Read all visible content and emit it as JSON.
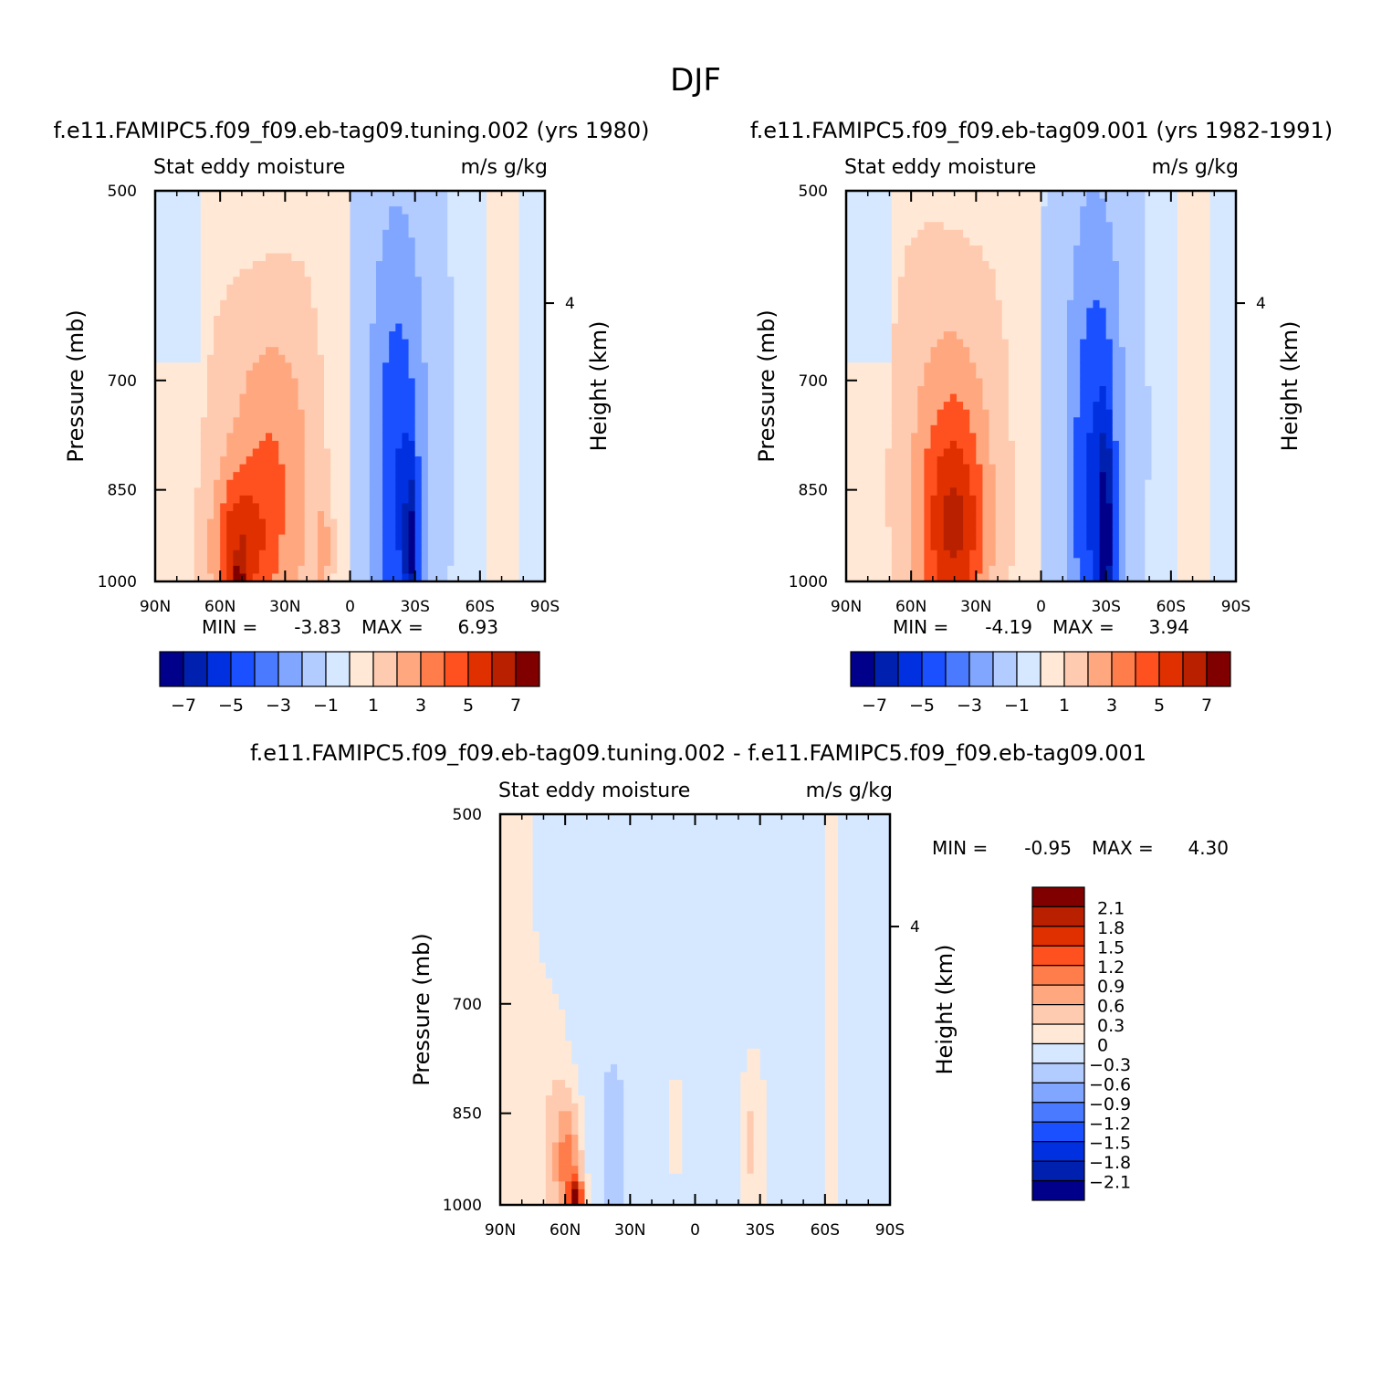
{
  "figure": {
    "title": "DJF"
  },
  "colors": {
    "neg": [
      "#00008b",
      "#0020b0",
      "#0030e0",
      "#1a50ff",
      "#4a7aff",
      "#80a6ff",
      "#b3ccff",
      "#d6e8ff"
    ],
    "pos": [
      "#ffe9d6",
      "#ffcbb0",
      "#ffa880",
      "#ff7d4a",
      "#ff5020",
      "#e03000",
      "#b82000",
      "#800000"
    ],
    "white": "#ffffff"
  },
  "chart_data": [
    {
      "type": "heatmap",
      "panel": "top-left",
      "title": "f.e11.FAMIPC5.f09_f09.eb-tag09.tuning.002 (yrs 1980)",
      "subtitle_left": "Stat eddy moisture",
      "subtitle_right": "m/s g/kg",
      "ylabel": "Pressure (mb)",
      "ylabel_right": "Height (km)",
      "x_ticks": [
        "90N",
        "60N",
        "30N",
        "0",
        "30S",
        "60S",
        "90S"
      ],
      "x_range": [
        90,
        -90
      ],
      "y_ticks": [
        500,
        700,
        850,
        1000
      ],
      "y_range": [
        500,
        1000
      ],
      "y_right_ticks": [
        4
      ],
      "min_label": "MIN =",
      "min": "-3.83",
      "max_label": "MAX =",
      "max": "6.93",
      "colorbar": {
        "orientation": "horizontal",
        "levels": [
          -7,
          -6,
          -5,
          -4,
          -3,
          -2,
          -1,
          0,
          1,
          2,
          3,
          4,
          5,
          6,
          7
        ],
        "tick_labels": [
          "-7",
          "-5",
          "-3",
          "-1",
          "1",
          "3",
          "5",
          "7"
        ]
      },
      "features": [
        {
          "lat": 52,
          "p": 960,
          "value": 3.0,
          "sx": 12,
          "sp": 95
        },
        {
          "lat": 38,
          "p": 880,
          "value": 2.2,
          "sx": 22,
          "sp": 260
        },
        {
          "lat": 12,
          "p": 960,
          "value": 1.4,
          "sx": 4,
          "sp": 70
        },
        {
          "lat": 52,
          "p": 1000,
          "value": 3.6,
          "sx": 3,
          "sp": 22
        },
        {
          "lat": -28,
          "p": 960,
          "value": -3.3,
          "sx": 3,
          "sp": 110
        },
        {
          "lat": -22,
          "p": 900,
          "value": -2.4,
          "sx": 12,
          "sp": 300
        },
        {
          "lat": -20,
          "p": 760,
          "value": -1.3,
          "sx": 22,
          "sp": 600
        },
        {
          "lat": 35,
          "p": 880,
          "value": 0.7,
          "sx": 16,
          "sp": 240
        }
      ],
      "background": "warm-north-cool-south"
    },
    {
      "type": "heatmap",
      "panel": "top-right",
      "title": "f.e11.FAMIPC5.f09_f09.eb-tag09.001 (yrs 1982-1991)",
      "subtitle_left": "Stat eddy moisture",
      "subtitle_right": "m/s g/kg",
      "ylabel": "Pressure (mb)",
      "ylabel_right": "Height (km)",
      "x_ticks": [
        "90N",
        "60N",
        "30N",
        "0",
        "30S",
        "60S",
        "90S"
      ],
      "x_range": [
        90,
        -90
      ],
      "y_ticks": [
        500,
        700,
        850,
        1000
      ],
      "y_range": [
        500,
        1000
      ],
      "y_right_ticks": [
        4
      ],
      "min_label": "MIN =",
      "min": "-4.19",
      "max_label": "MAX =",
      "max": "3.94",
      "colorbar": {
        "orientation": "horizontal",
        "levels": [
          -7,
          -6,
          -5,
          -4,
          -3,
          -2,
          -1,
          0,
          1,
          2,
          3,
          4,
          5,
          6,
          7
        ],
        "tick_labels": [
          "-7",
          "-5",
          "-3",
          "-1",
          "1",
          "3",
          "5",
          "7"
        ]
      },
      "features": [
        {
          "lat": 40,
          "p": 940,
          "value": 2.6,
          "sx": 14,
          "sp": 140
        },
        {
          "lat": 42,
          "p": 860,
          "value": 1.8,
          "sx": 22,
          "sp": 300
        },
        {
          "lat": -30,
          "p": 950,
          "value": -3.6,
          "sx": 3,
          "sp": 150
        },
        {
          "lat": -25,
          "p": 900,
          "value": -2.6,
          "sx": 12,
          "sp": 310
        },
        {
          "lat": -22,
          "p": 760,
          "value": -1.3,
          "sx": 22,
          "sp": 620
        },
        {
          "lat": 40,
          "p": 900,
          "value": 0.8,
          "sx": 18,
          "sp": 260
        }
      ],
      "background": "warm-north-cool-south"
    },
    {
      "type": "heatmap",
      "panel": "bottom",
      "title": "f.e11.FAMIPC5.f09_f09.eb-tag09.tuning.002 - f.e11.FAMIPC5.f09_f09.eb-tag09.001",
      "subtitle_left": "Stat eddy moisture",
      "subtitle_right": "m/s g/kg",
      "ylabel": "Pressure (mb)",
      "ylabel_right": "Height (km)",
      "x_ticks": [
        "90N",
        "60N",
        "30N",
        "0",
        "30S",
        "60S",
        "90S"
      ],
      "x_range": [
        90,
        -90
      ],
      "y_ticks": [
        500,
        700,
        850,
        1000
      ],
      "y_range": [
        500,
        1000
      ],
      "y_right_ticks": [
        4
      ],
      "min_label": "MIN =",
      "min": "-0.95",
      "max_label": "MAX =",
      "max": "4.30",
      "colorbar": {
        "orientation": "vertical",
        "levels": [
          -2.4,
          -2.1,
          -1.8,
          -1.5,
          -1.2,
          -0.9,
          -0.6,
          -0.3,
          0,
          0.3,
          0.6,
          0.9,
          1.2,
          1.5,
          1.8,
          2.1,
          2.4
        ],
        "tick_labels": [
          "2.1",
          "1.8",
          "1.5",
          "1.2",
          "0.9",
          "0.6",
          "0.3",
          "0",
          "-0.3",
          "-0.6",
          "-0.9",
          "-1.2",
          "-1.5",
          "-1.8",
          "-2.1"
        ]
      },
      "features": [
        {
          "lat": 55,
          "p": 995,
          "value": 2.4,
          "sx": 3,
          "sp": 25
        },
        {
          "lat": 58,
          "p": 950,
          "value": 1.0,
          "sx": 6,
          "sp": 80
        },
        {
          "lat": 65,
          "p": 920,
          "value": 0.45,
          "sx": 9,
          "sp": 160
        },
        {
          "lat": 38,
          "p": 930,
          "value": -0.5,
          "sx": 5,
          "sp": 120
        },
        {
          "lat": 9,
          "p": 900,
          "value": 0.6,
          "sx": 2,
          "sp": 60
        },
        {
          "lat": -26,
          "p": 920,
          "value": 0.5,
          "sx": 5,
          "sp": 110
        }
      ],
      "background": "difference"
    }
  ]
}
